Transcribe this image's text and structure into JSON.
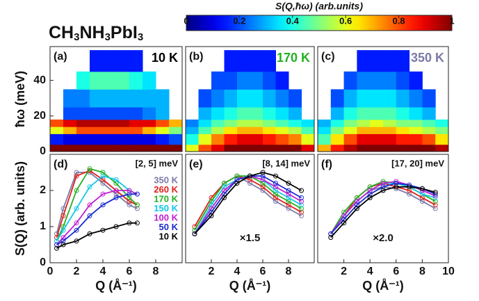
{
  "title": "CH3NH3PbI3",
  "chart_data": [
    {
      "type": "colorbar",
      "title": "S(Q,ħω) (arb.units)",
      "colormap": "jet",
      "xlim": [
        0,
        1
      ],
      "xticks": [
        0,
        0.2,
        0.4,
        0.6,
        0.8,
        1
      ]
    },
    {
      "type": "heatmap",
      "panel_label": "(a)",
      "annotation": "10 K",
      "annotation_color": "#000000",
      "ylabel": "ħω (meV)",
      "xlim": [
        0,
        10
      ],
      "ylim": [
        0,
        59
      ],
      "yticks": [
        0,
        20,
        40
      ],
      "xbins": [
        0,
        1,
        2,
        3,
        4,
        5,
        6,
        7,
        8,
        9,
        10
      ],
      "ybins": [
        0,
        4,
        10,
        14,
        18,
        25,
        35,
        45,
        57
      ],
      "z": [
        [
          1,
          1,
          1,
          1,
          1,
          1,
          1,
          1,
          1,
          1
        ],
        [
          0.15,
          0.1,
          0.1,
          0.1,
          0.1,
          0.1,
          0.1,
          0.1,
          0.15,
          0.2
        ],
        [
          0.6,
          0.7,
          0.8,
          0.8,
          0.8,
          0.8,
          0.8,
          0.7,
          0.6,
          0.5
        ],
        [
          0.8,
          0.9,
          0.95,
          0.95,
          0.95,
          0.95,
          0.9,
          0.9,
          0.8,
          0.7
        ],
        [
          null,
          0.2,
          0.2,
          0.2,
          0.2,
          0.2,
          0.2,
          0.25,
          0.3,
          null
        ],
        [
          null,
          0.25,
          0.25,
          0.3,
          0.3,
          0.3,
          0.3,
          0.3,
          0.3,
          null
        ],
        [
          null,
          null,
          0.4,
          0.45,
          0.45,
          0.45,
          0.4,
          0.35,
          null,
          null
        ],
        [
          null,
          null,
          null,
          0.15,
          0.15,
          0.15,
          0.15,
          null,
          null,
          null
        ]
      ]
    },
    {
      "type": "heatmap",
      "panel_label": "(b)",
      "annotation": "170 K",
      "annotation_color": "#22b022",
      "xlim": [
        0,
        10
      ],
      "ylim": [
        0,
        59
      ],
      "xbins": [
        0,
        1,
        2,
        3,
        4,
        5,
        6,
        7,
        8,
        9,
        10
      ],
      "ybins": [
        0,
        4,
        10,
        14,
        18,
        25,
        35,
        45,
        57
      ],
      "z": [
        [
          0.6,
          0.8,
          0.9,
          1,
          1,
          1,
          1,
          1,
          1,
          0.9
        ],
        [
          0.4,
          0.6,
          0.75,
          0.85,
          0.9,
          0.9,
          0.85,
          0.8,
          0.75,
          0.6
        ],
        [
          0.3,
          0.45,
          0.55,
          0.65,
          0.7,
          0.7,
          0.65,
          0.6,
          0.55,
          0.45
        ],
        [
          0.25,
          0.35,
          0.45,
          0.5,
          0.55,
          0.55,
          0.5,
          0.45,
          0.4,
          0.35
        ],
        [
          null,
          0.3,
          0.35,
          0.4,
          0.45,
          0.45,
          0.4,
          0.35,
          0.3,
          null
        ],
        [
          null,
          0.2,
          0.25,
          0.3,
          0.35,
          0.35,
          0.3,
          0.25,
          0.2,
          null
        ],
        [
          null,
          null,
          0.2,
          0.2,
          0.25,
          0.25,
          0.2,
          0.15,
          null,
          null
        ],
        [
          null,
          null,
          null,
          0.15,
          0.15,
          0.15,
          0.15,
          null,
          null,
          null
        ]
      ]
    },
    {
      "type": "heatmap",
      "panel_label": "(c)",
      "annotation": "350 K",
      "annotation_color": "#7a7aa8",
      "xlim": [
        0,
        10
      ],
      "ylim": [
        0,
        59
      ],
      "xbins": [
        0,
        1,
        2,
        3,
        4,
        5,
        6,
        7,
        8,
        9,
        10
      ],
      "ybins": [
        0,
        4,
        10,
        14,
        18,
        25,
        35,
        45,
        57
      ],
      "z": [
        [
          0.7,
          0.85,
          0.95,
          1,
          1,
          1,
          1,
          1,
          1,
          0.95
        ],
        [
          0.45,
          0.65,
          0.8,
          0.9,
          0.9,
          0.9,
          0.85,
          0.85,
          0.8,
          0.65
        ],
        [
          0.35,
          0.5,
          0.6,
          0.7,
          0.7,
          0.7,
          0.65,
          0.6,
          0.55,
          0.5
        ],
        [
          0.3,
          0.4,
          0.5,
          0.55,
          0.6,
          0.55,
          0.5,
          0.5,
          0.45,
          0.4
        ],
        [
          null,
          0.3,
          0.4,
          0.45,
          0.45,
          0.45,
          0.4,
          0.35,
          0.3,
          null
        ],
        [
          null,
          0.2,
          0.3,
          0.35,
          0.35,
          0.35,
          0.3,
          0.25,
          0.2,
          null
        ],
        [
          null,
          null,
          0.2,
          0.25,
          0.25,
          0.25,
          0.2,
          0.15,
          null,
          null
        ],
        [
          null,
          null,
          null,
          0.15,
          0.15,
          0.15,
          0.15,
          null,
          null,
          null
        ]
      ]
    },
    {
      "type": "line",
      "panel_label": "(d)",
      "annotation": "[2, 5] meV",
      "xlabel": "Q (Å⁻¹)",
      "ylabel": "S(Q) (arb. units)",
      "xlim": [
        0,
        10
      ],
      "xticks": [
        0,
        2,
        4,
        6,
        8
      ],
      "ylim": [
        0,
        3
      ],
      "yticks": [
        0,
        1,
        2
      ],
      "legend": "right",
      "x": [
        0.5,
        1,
        2,
        3,
        4,
        5,
        6,
        6.6
      ],
      "series": [
        {
          "name": "350 K",
          "color": "#7a7aa8",
          "values": [
            0.8,
            1.5,
            2.5,
            2.5,
            2.2,
            1.9,
            1.6,
            1.5
          ]
        },
        {
          "name": "260 K",
          "color": "#e0201b",
          "values": [
            0.7,
            1.3,
            2.4,
            2.55,
            2.3,
            2.0,
            1.7,
            1.6
          ]
        },
        {
          "name": "170 K",
          "color": "#22b022",
          "values": [
            0.6,
            1.0,
            2.0,
            2.6,
            2.5,
            2.2,
            1.8,
            1.6
          ]
        },
        {
          "name": "150 K",
          "color": "#10c8e8",
          "values": [
            0.6,
            0.9,
            1.5,
            2.1,
            2.4,
            2.3,
            2.0,
            1.9
          ]
        },
        {
          "name": "100 K",
          "color": "#c020d0",
          "values": [
            0.5,
            0.7,
            1.1,
            1.6,
            1.9,
            2.0,
            2.0,
            1.9
          ]
        },
        {
          "name": "50 K",
          "color": "#1a2ad0",
          "values": [
            0.5,
            0.6,
            0.9,
            1.3,
            1.6,
            1.8,
            1.9,
            1.9
          ]
        },
        {
          "name": "10 K",
          "color": "#000000",
          "values": [
            0.4,
            0.5,
            0.6,
            0.8,
            0.9,
            1.0,
            1.1,
            1.1
          ]
        }
      ]
    },
    {
      "type": "line",
      "panel_label": "(e)",
      "annotation": "[8, 14] meV",
      "xlabel": "Q (Å⁻¹)",
      "scale_label": "×1.5",
      "xlim": [
        0,
        10
      ],
      "xticks": [
        2,
        4,
        6,
        8
      ],
      "ylim": [
        0,
        3
      ],
      "x": [
        0.7,
        2,
        3,
        4,
        5,
        6,
        7,
        8,
        9
      ],
      "series": [
        {
          "color": "#7a7aa8",
          "values": [
            0.9,
            1.7,
            2.2,
            2.4,
            2.2,
            2.0,
            1.7,
            1.5,
            1.3
          ]
        },
        {
          "color": "#e0201b",
          "values": [
            1.0,
            1.8,
            2.2,
            2.4,
            2.3,
            2.1,
            1.8,
            1.6,
            1.4
          ]
        },
        {
          "color": "#22b022",
          "values": [
            0.9,
            1.7,
            2.2,
            2.4,
            2.4,
            2.2,
            1.9,
            1.7,
            1.5
          ]
        },
        {
          "color": "#10c8e8",
          "values": [
            0.8,
            1.6,
            2.1,
            2.3,
            2.4,
            2.3,
            2.0,
            1.8,
            1.6
          ]
        },
        {
          "color": "#c020d0",
          "values": [
            0.8,
            1.5,
            2.0,
            2.3,
            2.4,
            2.3,
            2.1,
            1.9,
            1.7
          ]
        },
        {
          "color": "#1a2ad0",
          "values": [
            0.8,
            1.4,
            1.9,
            2.3,
            2.4,
            2.4,
            2.2,
            2.0,
            1.8
          ]
        },
        {
          "color": "#000000",
          "values": [
            0.8,
            1.3,
            1.8,
            2.2,
            2.4,
            2.5,
            2.4,
            2.2,
            2.0
          ]
        }
      ]
    },
    {
      "type": "line",
      "panel_label": "(f)",
      "annotation": "[17, 20] meV",
      "xlabel": "Q (Å⁻¹)",
      "scale_label": "×2.0",
      "xlim": [
        0,
        10
      ],
      "xticks": [
        2,
        4,
        6,
        8,
        10
      ],
      "ylim": [
        0,
        3
      ],
      "x": [
        1,
        2,
        3,
        4,
        5,
        6,
        7,
        8,
        9
      ],
      "series": [
        {
          "color": "#7a7aa8",
          "values": [
            0.8,
            1.3,
            1.7,
            2.0,
            2.1,
            2.05,
            1.9,
            1.7,
            1.5
          ]
        },
        {
          "color": "#e0201b",
          "values": [
            0.8,
            1.3,
            1.8,
            2.1,
            2.2,
            2.1,
            2.0,
            1.8,
            1.6
          ]
        },
        {
          "color": "#22b022",
          "values": [
            0.8,
            1.4,
            1.8,
            2.1,
            2.25,
            2.2,
            2.1,
            1.9,
            1.7
          ]
        },
        {
          "color": "#10c8e8",
          "values": [
            0.8,
            1.3,
            1.7,
            2.0,
            2.2,
            2.2,
            2.1,
            1.9,
            1.8
          ]
        },
        {
          "color": "#c020d0",
          "values": [
            0.8,
            1.3,
            1.7,
            2.0,
            2.2,
            2.25,
            2.15,
            2.0,
            1.85
          ]
        },
        {
          "color": "#1a2ad0",
          "values": [
            0.8,
            1.2,
            1.6,
            1.9,
            2.1,
            2.2,
            2.15,
            2.05,
            1.9
          ]
        },
        {
          "color": "#000000",
          "values": [
            0.7,
            1.1,
            1.5,
            1.8,
            2.0,
            2.1,
            2.1,
            2.05,
            1.95
          ]
        }
      ]
    }
  ]
}
